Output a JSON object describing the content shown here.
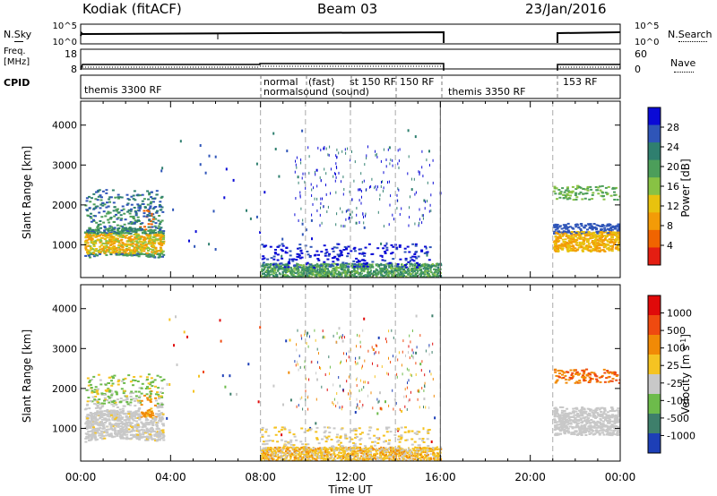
{
  "header": {
    "station": "Kodiak (fitACF)",
    "beam": "Beam 03",
    "date": "23/Jan/2016"
  },
  "strips": {
    "nsky_label": "N.Sky",
    "nsky_ticks": [
      "10^5",
      "10^0"
    ],
    "nsearch_label": "N.Search",
    "nsearch_ticks": [
      "10^5",
      "10^0"
    ],
    "freq_label_line1": "Freq.",
    "freq_label_line2": "[MHz]",
    "freq_ticks": [
      "18",
      "8"
    ],
    "nave_label": "Nave",
    "nave_ticks": [
      "60",
      "0"
    ],
    "cpid_label": "CPID"
  },
  "cpid": {
    "segments": [
      {
        "text": "themis 3300 RF"
      },
      {
        "text": "normal"
      },
      {
        "text": "normalsound"
      },
      {
        "text": "(fast)"
      },
      {
        "text": "(sound)"
      },
      {
        "text": "st 150 RF"
      },
      {
        "text": "150 RF"
      },
      {
        "text": "themis 3350 RF"
      },
      {
        "text": "153 RF"
      }
    ]
  },
  "chart_data": [
    {
      "type": "heatmap",
      "title": "Power",
      "xlabel": "",
      "ylabel": "Slant Range [km]",
      "xlim": [
        "00:00",
        "24:00"
      ],
      "ylim": [
        180,
        4600
      ],
      "y_ticks": [
        "1000",
        "2000",
        "3000",
        "4000"
      ],
      "colorbar": {
        "label": "Power [dB]",
        "ticks": [
          "28",
          "24",
          "20",
          "16",
          "12",
          "8",
          "4"
        ],
        "colors": [
          "#0a0ad6",
          "#2f55b8",
          "#2f7f6f",
          "#4c9e5a",
          "#88c244",
          "#e8c20e",
          "#f39b07",
          "#f06400",
          "#e41e12"
        ]
      },
      "features": [
        {
          "name": "early-echo-band",
          "time": [
            "00:10",
            "03:40"
          ],
          "range_km": [
            500,
            2200
          ]
        },
        {
          "name": "daytime-near-range",
          "time": [
            "08:00",
            "16:00"
          ],
          "range_km": [
            200,
            700
          ]
        },
        {
          "name": "late-echo-bands",
          "time": [
            "21:00",
            "24:00"
          ],
          "range_km": [
            800,
            2500
          ]
        }
      ]
    },
    {
      "type": "heatmap",
      "title": "Velocity",
      "xlabel": "Time UT",
      "ylabel": "Slant Range [km]",
      "xlim": [
        "00:00",
        "24:00"
      ],
      "ylim": [
        180,
        4600
      ],
      "x_ticks": [
        "00:00",
        "04:00",
        "08:00",
        "12:00",
        "16:00",
        "20:00",
        "00:00"
      ],
      "y_ticks": [
        "1000",
        "2000",
        "3000",
        "4000"
      ],
      "colorbar": {
        "label": "Velocity [m s^-1]",
        "ticks": [
          "1000",
          "500",
          "100",
          "25",
          "-25",
          "-100",
          "-500",
          "-1000"
        ],
        "colors": [
          "#1d3fb7",
          "#3e7f6b",
          "#6dbb4b",
          "#c8c8c8",
          "#f5c322",
          "#f18a06",
          "#ef4a10",
          "#e00a0a"
        ]
      }
    }
  ]
}
